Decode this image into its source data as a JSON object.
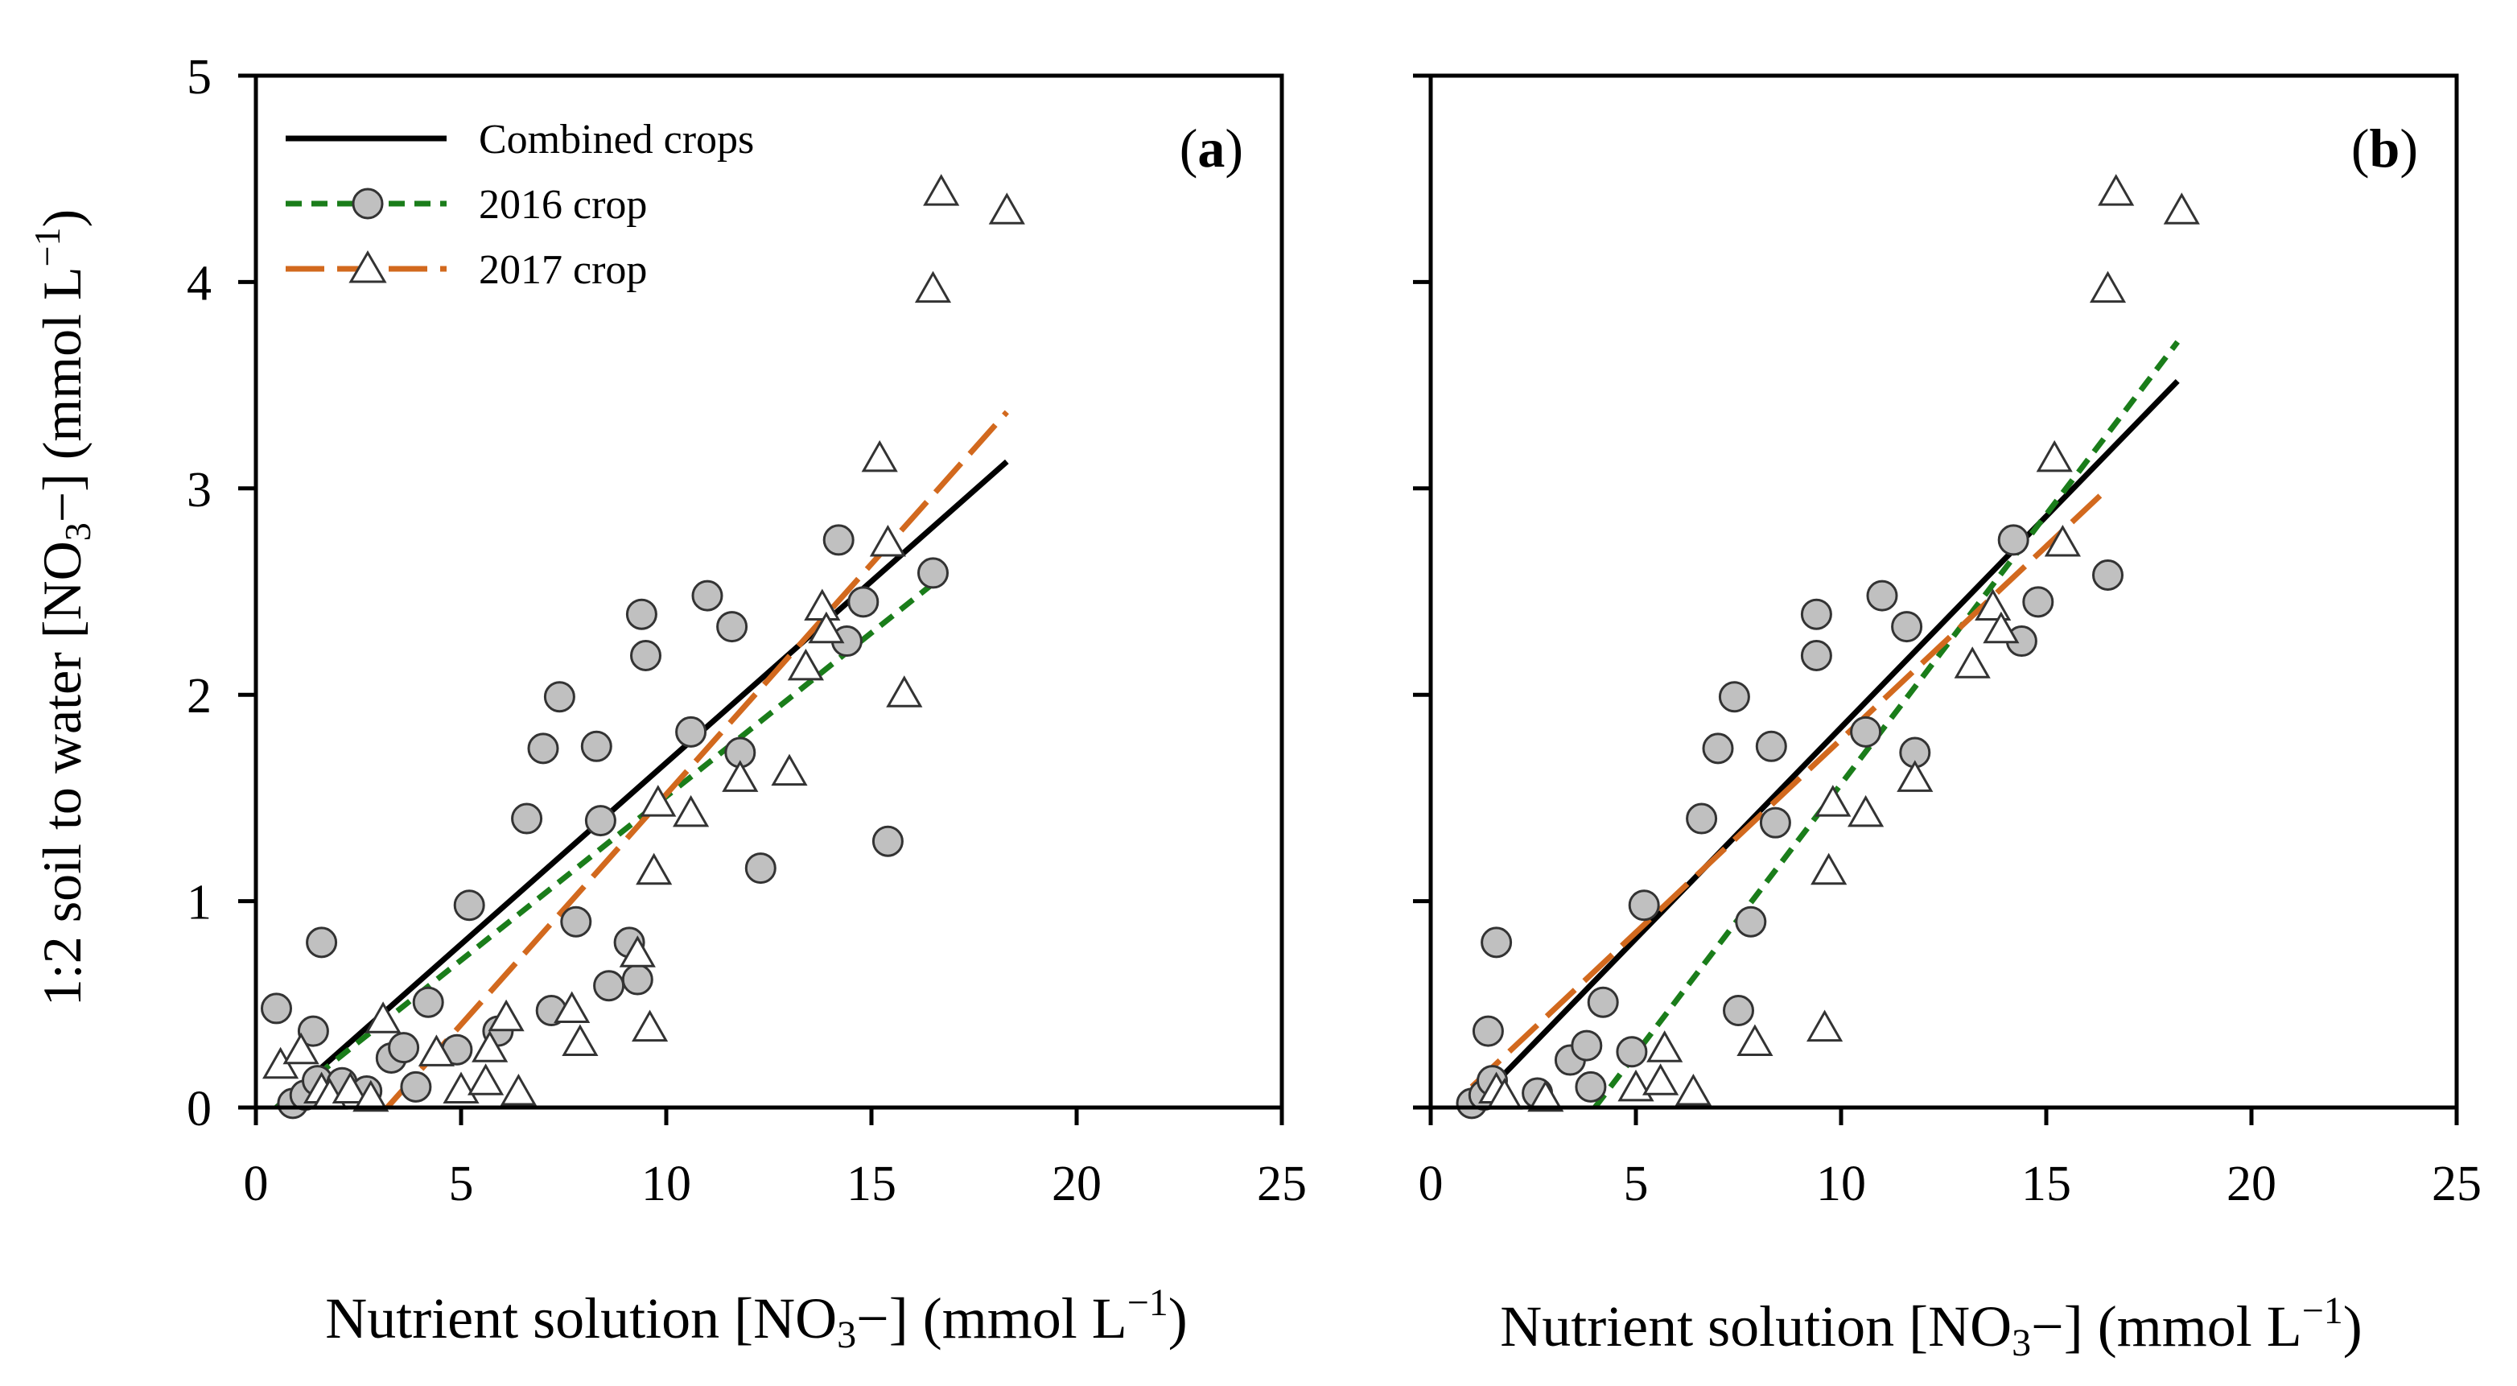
{
  "colors": {
    "combined": "#000000",
    "crop2016": "#1a7d1a",
    "crop2017": "#d2691e",
    "marker_fill_2016": "#c0c0c0",
    "marker_edge": "#333333"
  },
  "chart_data": [
    {
      "type": "scatter",
      "panel_label": "(a)",
      "panel_letter": "a",
      "xlabel": {
        "prefix": "Nutrient solution [NO",
        "sub": "3",
        "suffix": "−] (mmol L",
        "sup": "−1",
        "end": ")"
      },
      "ylabel": {
        "prefix": "1:2 soil to water [NO",
        "sub": "3",
        "suffix": "−] (mmol L",
        "sup": "−1",
        "end": ")"
      },
      "xlim": [
        0,
        25
      ],
      "ylim": [
        0,
        5
      ],
      "xticks": [
        "0",
        "5",
        "10",
        "15",
        "20",
        "25"
      ],
      "yticks": [
        "0",
        "1",
        "2",
        "3",
        "4",
        "5"
      ],
      "legend": [
        {
          "key": "combined",
          "label": "Combined crops",
          "style": "solid",
          "marker": "none"
        },
        {
          "key": "crop2016",
          "label": "2016 crop",
          "style": "short-dash",
          "marker": "circle"
        },
        {
          "key": "crop2017",
          "label": "2017 crop",
          "style": "long-dash",
          "marker": "triangle"
        }
      ],
      "lines": [
        {
          "name": "Combined crops",
          "key": "combined",
          "style": "solid",
          "x": [
            0.5,
            18.3
          ],
          "y": [
            0.0,
            3.13
          ]
        },
        {
          "name": "2016 crop",
          "key": "crop2016",
          "style": "short-dash",
          "x": [
            0.5,
            16.7
          ],
          "y": [
            0.0,
            2.57
          ]
        },
        {
          "name": "2017 crop",
          "key": "crop2017",
          "style": "long-dash",
          "x": [
            3.2,
            18.3
          ],
          "y": [
            0.0,
            3.37
          ]
        }
      ],
      "series": [
        {
          "name": "2016 crop",
          "marker": "circle",
          "points": [
            [
              0.5,
              0.48
            ],
            [
              0.9,
              0.02
            ],
            [
              1.2,
              0.06
            ],
            [
              1.4,
              0.37
            ],
            [
              1.5,
              0.13
            ],
            [
              1.6,
              0.8
            ],
            [
              2.1,
              0.12
            ],
            [
              2.7,
              0.08
            ],
            [
              3.3,
              0.24
            ],
            [
              3.6,
              0.29
            ],
            [
              3.9,
              0.1
            ],
            [
              4.2,
              0.51
            ],
            [
              4.9,
              0.28
            ],
            [
              5.2,
              0.98
            ],
            [
              5.9,
              0.37
            ],
            [
              6.6,
              1.4
            ],
            [
              7.0,
              1.74
            ],
            [
              7.2,
              0.47
            ],
            [
              7.4,
              1.99
            ],
            [
              7.8,
              0.9
            ],
            [
              8.3,
              1.75
            ],
            [
              8.4,
              1.39
            ],
            [
              8.6,
              0.59
            ],
            [
              9.1,
              0.8
            ],
            [
              9.3,
              0.62
            ],
            [
              9.4,
              2.39
            ],
            [
              9.5,
              2.19
            ],
            [
              10.6,
              1.82
            ],
            [
              11.0,
              2.48
            ],
            [
              11.6,
              2.33
            ],
            [
              11.8,
              1.72
            ],
            [
              12.3,
              1.16
            ],
            [
              14.2,
              2.75
            ],
            [
              14.4,
              2.26
            ],
            [
              14.8,
              2.45
            ],
            [
              15.4,
              1.29
            ],
            [
              16.5,
              2.59
            ]
          ]
        },
        {
          "name": "2017 crop",
          "marker": "triangle",
          "points": [
            [
              0.6,
              0.2
            ],
            [
              1.1,
              0.27
            ],
            [
              1.6,
              0.08
            ],
            [
              1.8,
              0.05
            ],
            [
              2.3,
              0.08
            ],
            [
              2.8,
              0.04
            ],
            [
              3.1,
              0.42
            ],
            [
              4.4,
              0.26
            ],
            [
              5.0,
              0.08
            ],
            [
              5.6,
              0.12
            ],
            [
              5.7,
              0.28
            ],
            [
              6.1,
              0.43
            ],
            [
              6.4,
              0.07
            ],
            [
              7.7,
              0.47
            ],
            [
              7.9,
              0.31
            ],
            [
              9.3,
              0.74
            ],
            [
              9.6,
              0.38
            ],
            [
              9.7,
              1.14
            ],
            [
              9.8,
              1.47
            ],
            [
              10.6,
              1.42
            ],
            [
              11.8,
              1.59
            ],
            [
              13.0,
              1.62
            ],
            [
              13.4,
              2.13
            ],
            [
              13.8,
              2.42
            ],
            [
              13.9,
              2.31
            ],
            [
              15.2,
              3.14
            ],
            [
              15.4,
              2.73
            ],
            [
              15.8,
              2.0
            ],
            [
              16.5,
              3.96
            ],
            [
              16.7,
              4.43
            ],
            [
              18.3,
              4.34
            ]
          ]
        }
      ]
    },
    {
      "type": "scatter",
      "panel_label": "(b)",
      "panel_letter": "b",
      "xlabel": {
        "prefix": "Nutrient solution [NO",
        "sub": "3",
        "suffix": "−] (mmol L",
        "sup": "−1",
        "end": ")"
      },
      "xlim": [
        0,
        25
      ],
      "ylim": [
        0,
        5
      ],
      "xticks": [
        "0",
        "5",
        "10",
        "15",
        "20",
        "25"
      ],
      "lines": [
        {
          "name": "Combined crops",
          "key": "combined",
          "style": "solid",
          "x": [
            1.0,
            18.2
          ],
          "y": [
            0.0,
            3.52
          ]
        },
        {
          "name": "2016 crop",
          "key": "crop2016",
          "style": "short-dash",
          "x": [
            4.0,
            18.2
          ],
          "y": [
            0.0,
            3.71
          ]
        },
        {
          "name": "2017 crop",
          "key": "crop2017",
          "style": "long-dash",
          "x": [
            1.0,
            16.5
          ],
          "y": [
            0.1,
            3.0
          ]
        }
      ],
      "series": [
        {
          "name": "2016 crop",
          "marker": "circle",
          "points": [
            [
              1.0,
              0.02
            ],
            [
              1.3,
              0.06
            ],
            [
              1.4,
              0.37
            ],
            [
              1.5,
              0.13
            ],
            [
              1.6,
              0.8
            ],
            [
              2.6,
              0.07
            ],
            [
              3.4,
              0.23
            ],
            [
              3.8,
              0.3
            ],
            [
              3.9,
              0.1
            ],
            [
              4.2,
              0.51
            ],
            [
              4.9,
              0.27
            ],
            [
              5.2,
              0.98
            ],
            [
              6.6,
              1.4
            ],
            [
              7.0,
              1.74
            ],
            [
              7.4,
              1.99
            ],
            [
              7.5,
              0.47
            ],
            [
              7.8,
              0.9
            ],
            [
              8.3,
              1.75
            ],
            [
              8.4,
              1.38
            ],
            [
              9.4,
              2.39
            ],
            [
              9.4,
              2.19
            ],
            [
              10.6,
              1.82
            ],
            [
              11.0,
              2.48
            ],
            [
              11.6,
              2.33
            ],
            [
              11.8,
              1.72
            ],
            [
              14.2,
              2.75
            ],
            [
              14.4,
              2.26
            ],
            [
              14.8,
              2.45
            ],
            [
              16.5,
              2.58
            ]
          ]
        },
        {
          "name": "2017 crop",
          "marker": "triangle",
          "points": [
            [
              1.6,
              0.08
            ],
            [
              1.8,
              0.05
            ],
            [
              2.8,
              0.04
            ],
            [
              5.0,
              0.09
            ],
            [
              5.6,
              0.12
            ],
            [
              5.7,
              0.28
            ],
            [
              6.4,
              0.07
            ],
            [
              7.9,
              0.31
            ],
            [
              9.6,
              0.38
            ],
            [
              9.7,
              1.14
            ],
            [
              9.8,
              1.47
            ],
            [
              10.6,
              1.42
            ],
            [
              11.8,
              1.59
            ],
            [
              13.2,
              2.14
            ],
            [
              13.7,
              2.42
            ],
            [
              13.9,
              2.31
            ],
            [
              15.2,
              3.14
            ],
            [
              15.4,
              2.73
            ],
            [
              16.5,
              3.96
            ],
            [
              16.7,
              4.43
            ],
            [
              18.3,
              4.34
            ]
          ]
        }
      ]
    }
  ]
}
